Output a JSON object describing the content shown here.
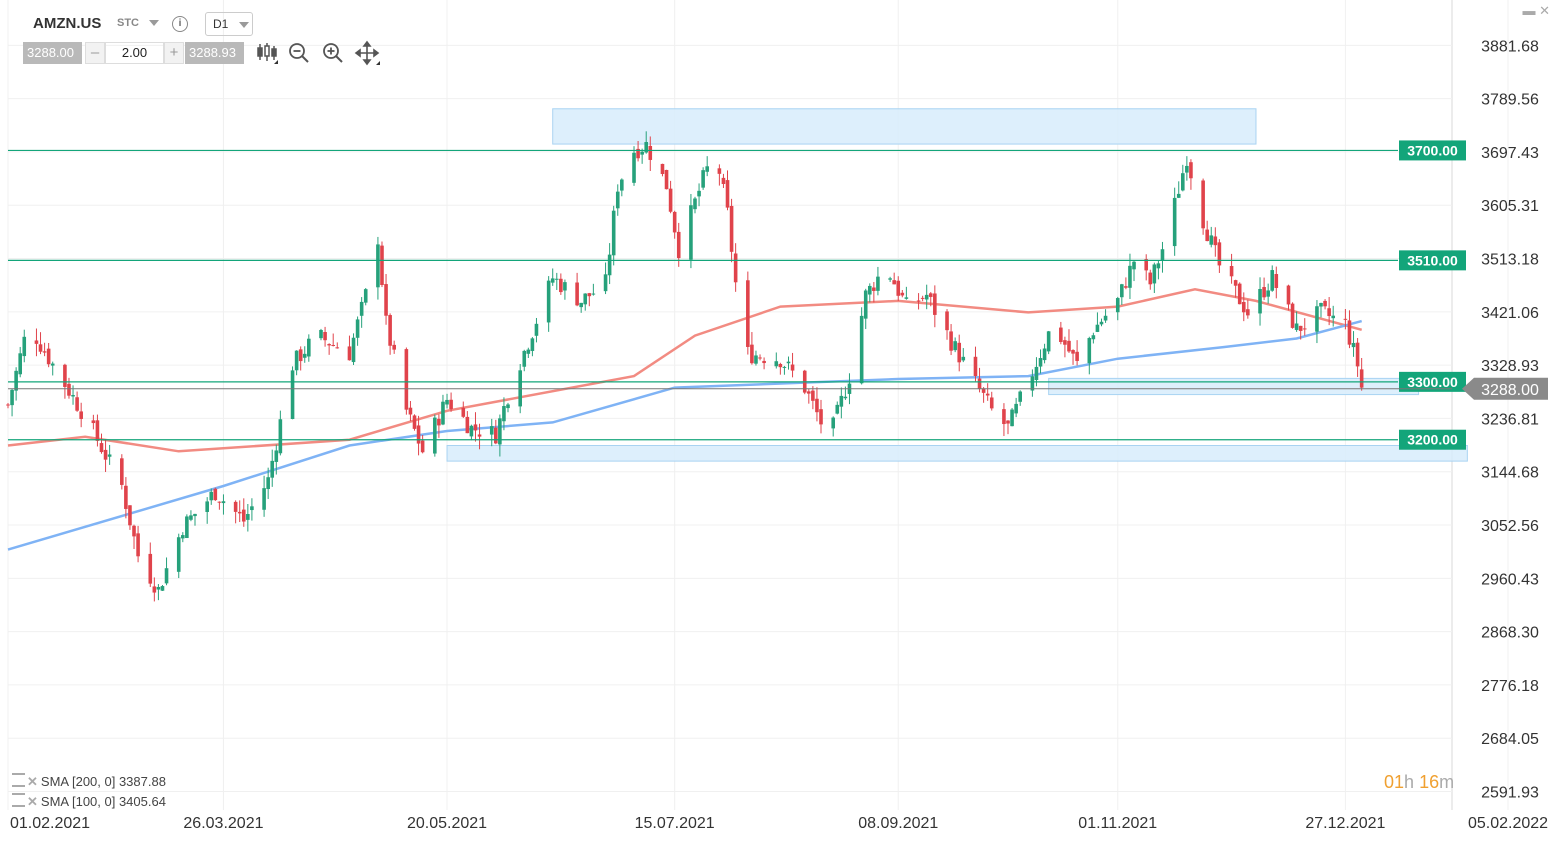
{
  "toolbar": {
    "symbol": "AMZN.US",
    "asset_type": "STC",
    "info_icon": "info-icon",
    "timeframe": "D1",
    "sell_price": "3288.00",
    "volume": "2.00",
    "buy_price": "3288.93",
    "minus": "–",
    "plus": "+",
    "tools": [
      "candlestick-icon",
      "zoom-out-icon",
      "zoom-in-icon",
      "move-icon"
    ]
  },
  "window_controls": {
    "minimize": "▬",
    "close": "✕"
  },
  "legend": [
    {
      "label": "SMA [200, 0] 3387.88"
    },
    {
      "label": "SMA [100, 0] 3405.64"
    }
  ],
  "timer": {
    "hours": "01",
    "h": "h",
    "minutes": "16",
    "m": "m"
  },
  "colors": {
    "up": "#26a17b",
    "down": "#e0434b",
    "sma200": "#f28b82",
    "sma100": "#7fb3f5",
    "level_line": "#13a57a",
    "zone_fill": "#d7ecfb",
    "zone_stroke": "#a9d3f2",
    "current_price": "#777777"
  },
  "chart_data": {
    "type": "candlestick",
    "symbol": "AMZN.US",
    "timeframe": "D1",
    "ylim": [
      2560,
      3960
    ],
    "y_ticks": [
      "3881.68",
      "3789.56",
      "3697.43",
      "3605.31",
      "3513.18",
      "3421.06",
      "3328.93",
      "3236.81",
      "3144.68",
      "3052.56",
      "2960.43",
      "2868.30",
      "2776.18",
      "2684.05",
      "2591.93"
    ],
    "x_ticks": [
      "01.02.2021",
      "26.03.2021",
      "20.05.2021",
      "15.07.2021",
      "08.09.2021",
      "01.11.2021",
      "27.12.2021",
      "05.02.2022"
    ],
    "horizontal_levels": [
      {
        "value": 3700,
        "label": "3700.00"
      },
      {
        "value": 3510,
        "label": "3510.00"
      },
      {
        "value": 3300,
        "label": "3300.00"
      },
      {
        "value": 3200,
        "label": "3200.00"
      }
    ],
    "current_price": {
      "value": 3288,
      "label": "3288.00"
    },
    "zones": [
      {
        "from": "15.06.2021",
        "to": "05.12.2021",
        "low": 3711,
        "high": 3772
      },
      {
        "from": "15.10.2021",
        "to": "14.01.2022",
        "low": 3278,
        "high": 3306
      },
      {
        "from": "20.05.2021",
        "to": "26.01.2022",
        "low": 3163,
        "high": 3190
      }
    ],
    "close_path": [
      [
        "01.02.2021",
        3260
      ],
      [
        "06.02.2021",
        3400
      ],
      [
        "12.02.2021",
        3330
      ],
      [
        "20.02.2021",
        3240
      ],
      [
        "01.03.2021",
        3120
      ],
      [
        "05.03.2021",
        3000
      ],
      [
        "10.03.2021",
        2940
      ],
      [
        "16.03.2021",
        3050
      ],
      [
        "24.03.2021",
        3110
      ],
      [
        "31.03.2021",
        3060
      ],
      [
        "06.04.2021",
        3130
      ],
      [
        "12.04.2021",
        3330
      ],
      [
        "18.04.2021",
        3380
      ],
      [
        "26.04.2021",
        3350
      ],
      [
        "30.04.2021",
        3450
      ],
      [
        "03.05.2021",
        3550
      ],
      [
        "05.05.2021",
        3400
      ],
      [
        "10.05.2021",
        3250
      ],
      [
        "14.05.2021",
        3180
      ],
      [
        "20.05.2021",
        3270
      ],
      [
        "26.05.2021",
        3220
      ],
      [
        "01.06.2021",
        3210
      ],
      [
        "05.06.2021",
        3300
      ],
      [
        "09.06.2021",
        3370
      ],
      [
        "15.06.2021",
        3480
      ],
      [
        "22.06.2021",
        3440
      ],
      [
        "28.06.2021",
        3470
      ],
      [
        "01.07.2021",
        3640
      ],
      [
        "05.07.2021",
        3700
      ],
      [
        "08.07.2021",
        3710
      ],
      [
        "13.07.2021",
        3640
      ],
      [
        "16.07.2021",
        3530
      ],
      [
        "22.07.2021",
        3650
      ],
      [
        "25.07.2021",
        3700
      ],
      [
        "28.07.2021",
        3590
      ],
      [
        "01.08.2021",
        3350
      ],
      [
        "10.08.2021",
        3340
      ],
      [
        "16.08.2021",
        3290
      ],
      [
        "22.08.2021",
        3200
      ],
      [
        "27.08.2021",
        3310
      ],
      [
        "31.08.2021",
        3450
      ],
      [
        "05.09.2021",
        3500
      ],
      [
        "10.09.2021",
        3430
      ],
      [
        "15.09.2021",
        3450
      ],
      [
        "21.09.2021",
        3370
      ],
      [
        "26.09.2021",
        3310
      ],
      [
        "01.10.2021",
        3250
      ],
      [
        "05.10.2021",
        3220
      ],
      [
        "10.10.2021",
        3300
      ],
      [
        "16.10.2021",
        3400
      ],
      [
        "22.10.2021",
        3330
      ],
      [
        "26.10.2021",
        3390
      ],
      [
        "01.11.2021",
        3440
      ],
      [
        "05.11.2021",
        3510
      ],
      [
        "09.11.2021",
        3470
      ],
      [
        "13.11.2021",
        3550
      ],
      [
        "18.11.2021",
        3690
      ],
      [
        "22.11.2021",
        3580
      ],
      [
        "26.11.2021",
        3500
      ],
      [
        "03.12.2021",
        3420
      ],
      [
        "09.12.2021",
        3480
      ],
      [
        "15.12.2021",
        3390
      ],
      [
        "21.12.2021",
        3420
      ],
      [
        "27.12.2021",
        3400
      ],
      [
        "30.12.2021",
        3330
      ],
      [
        "31.12.2021",
        3290
      ]
    ],
    "series": [
      {
        "name": "SMA [200, 0]",
        "value": 3387.88,
        "points": [
          [
            "01.02.2021",
            3190
          ],
          [
            "20.02.2021",
            3205
          ],
          [
            "15.03.2021",
            3180
          ],
          [
            "26.04.2021",
            3200
          ],
          [
            "20.05.2021",
            3250
          ],
          [
            "05.07.2021",
            3310
          ],
          [
            "20.07.2021",
            3380
          ],
          [
            "10.08.2021",
            3430
          ],
          [
            "08.09.2021",
            3440
          ],
          [
            "10.10.2021",
            3420
          ],
          [
            "01.11.2021",
            3430
          ],
          [
            "20.11.2021",
            3460
          ],
          [
            "05.12.2021",
            3440
          ],
          [
            "31.12.2021",
            3390
          ]
        ]
      },
      {
        "name": "SMA [100, 0]",
        "value": 3405.64,
        "points": [
          [
            "01.02.2021",
            3010
          ],
          [
            "26.03.2021",
            3120
          ],
          [
            "26.04.2021",
            3190
          ],
          [
            "20.05.2021",
            3215
          ],
          [
            "15.06.2021",
            3230
          ],
          [
            "15.07.2021",
            3290
          ],
          [
            "08.09.2021",
            3305
          ],
          [
            "10.10.2021",
            3310
          ],
          [
            "01.11.2021",
            3340
          ],
          [
            "27.11.2021",
            3360
          ],
          [
            "15.12.2021",
            3375
          ],
          [
            "31.12.2021",
            3405
          ]
        ]
      }
    ]
  }
}
